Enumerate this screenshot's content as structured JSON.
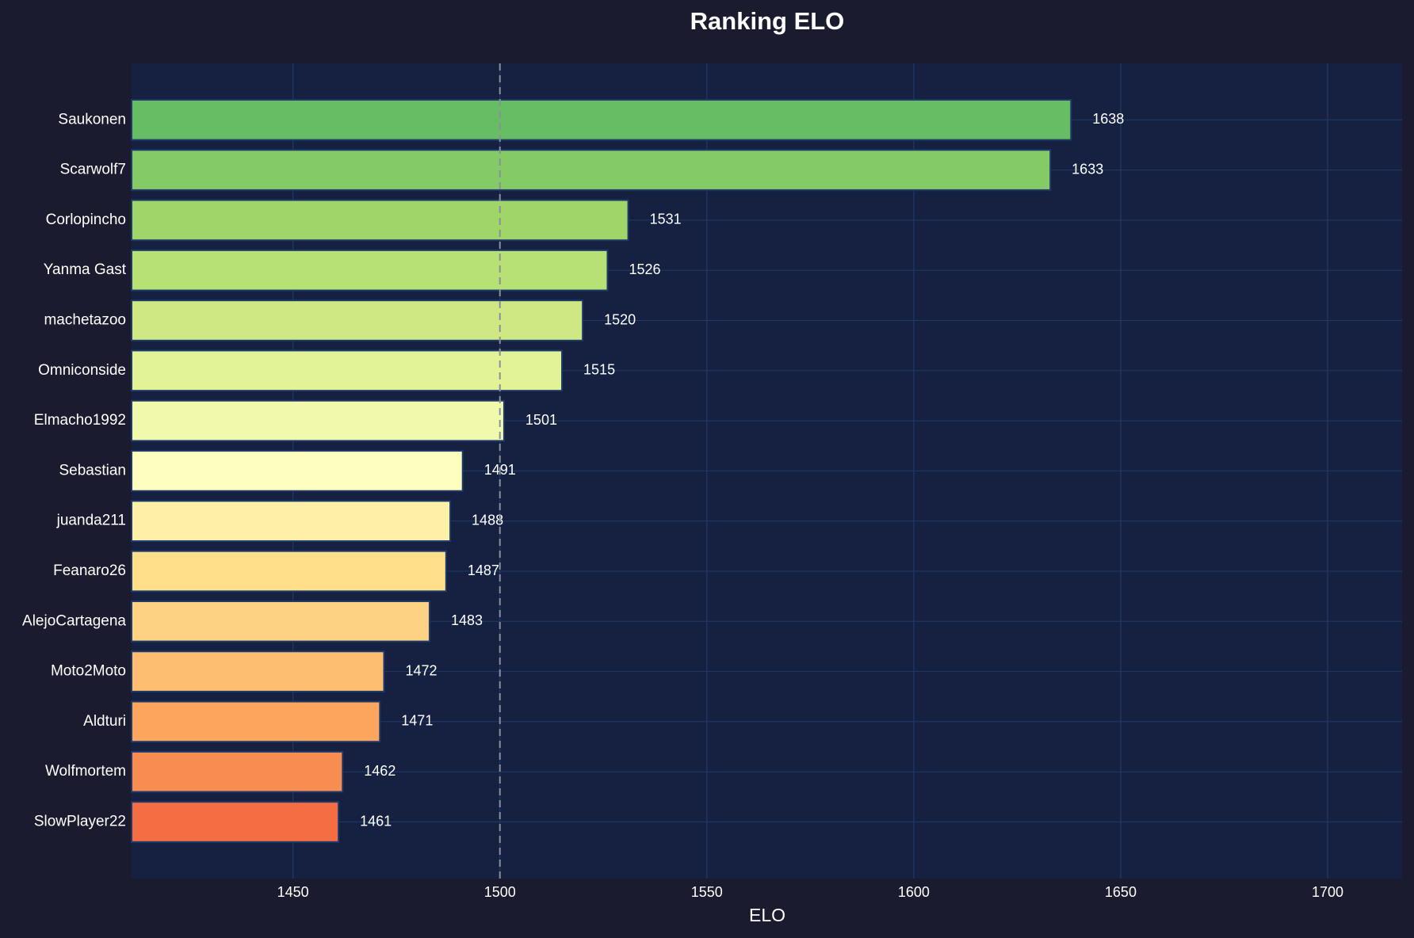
{
  "chart_data": {
    "type": "bar",
    "orientation": "horizontal",
    "title": "Ranking ELO",
    "x_label": "ELO",
    "categories": [
      "Saukonen",
      "Scarwolf7",
      "Corlopincho",
      "Yanma Gast",
      "machetazoo",
      "Omniconside",
      "Elmacho1992",
      "Sebastian",
      "juanda211",
      "Feanaro26",
      "AlejoCartagena",
      "Moto2Moto",
      "Aldturi",
      "Wolfmortem",
      "SlowPlayer22"
    ],
    "values": [
      1638,
      1633,
      1531,
      1526,
      1520,
      1515,
      1501,
      1491,
      1488,
      1487,
      1483,
      1472,
      1471,
      1462,
      1461
    ],
    "colors": [
      "#66bd63",
      "#84ca66",
      "#a0d669",
      "#b7e075",
      "#cee983",
      "#e2f397",
      "#f1f9ac",
      "#feffbe",
      "#fef0a7",
      "#fee08b",
      "#fed283",
      "#fdbf6f",
      "#fca55d",
      "#f88d52",
      "#f46d43"
    ],
    "xlim": [
      1411,
      1718
    ],
    "xticks": [
      1450,
      1500,
      1550,
      1600,
      1650,
      1700
    ],
    "grid": true,
    "reference_line": 1500
  }
}
